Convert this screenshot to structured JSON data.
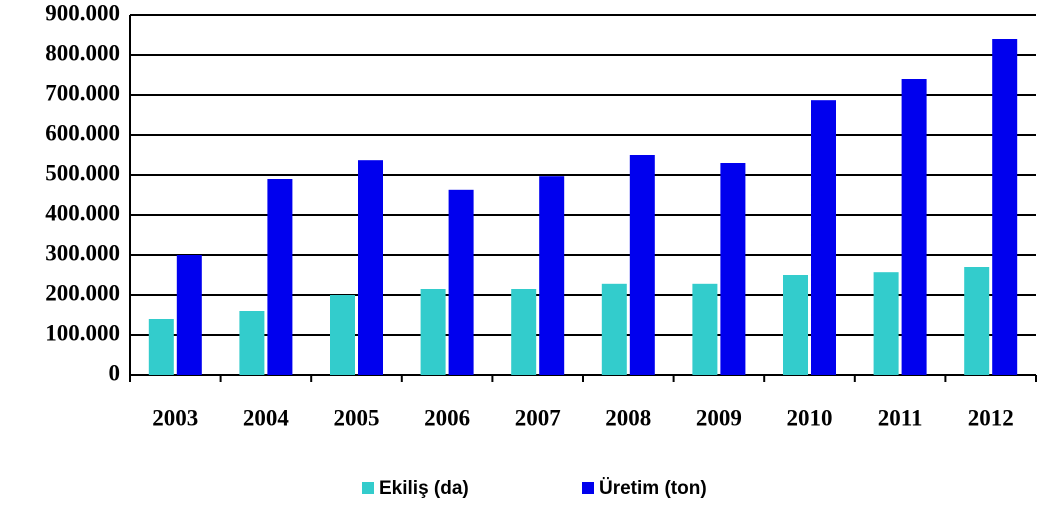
{
  "chart_data": {
    "type": "bar",
    "categories": [
      "2003",
      "2004",
      "2005",
      "2006",
      "2007",
      "2008",
      "2009",
      "2010",
      "2011",
      "2012"
    ],
    "series": [
      {
        "name": "Ekiliş (da)",
        "color": "#33cccc",
        "values": [
          140000,
          160000,
          200000,
          215000,
          215000,
          228000,
          228000,
          250000,
          257000,
          270000
        ]
      },
      {
        "name": "Üretim (ton)",
        "color": "#0000ee",
        "values": [
          300000,
          490000,
          537000,
          463000,
          497000,
          550000,
          530000,
          687000,
          740000,
          840000
        ]
      }
    ],
    "ylim": [
      0,
      900000
    ],
    "yticks": [
      0,
      {
        "value": 100000,
        "label": "100.000"
      },
      {
        "value": 200000,
        "label": "200.000"
      },
      {
        "value": 300000,
        "label": "300.000"
      },
      {
        "value": 400000,
        "label": "400.000"
      },
      {
        "value": 500000,
        "label": "500.000"
      },
      {
        "value": 600000,
        "label": "600.000"
      },
      {
        "value": 700000,
        "label": "700.000"
      },
      {
        "value": 800000,
        "label": "800.000"
      },
      {
        "value": 900000,
        "label": "900.000"
      }
    ],
    "grid": true,
    "legend": "bottom"
  }
}
